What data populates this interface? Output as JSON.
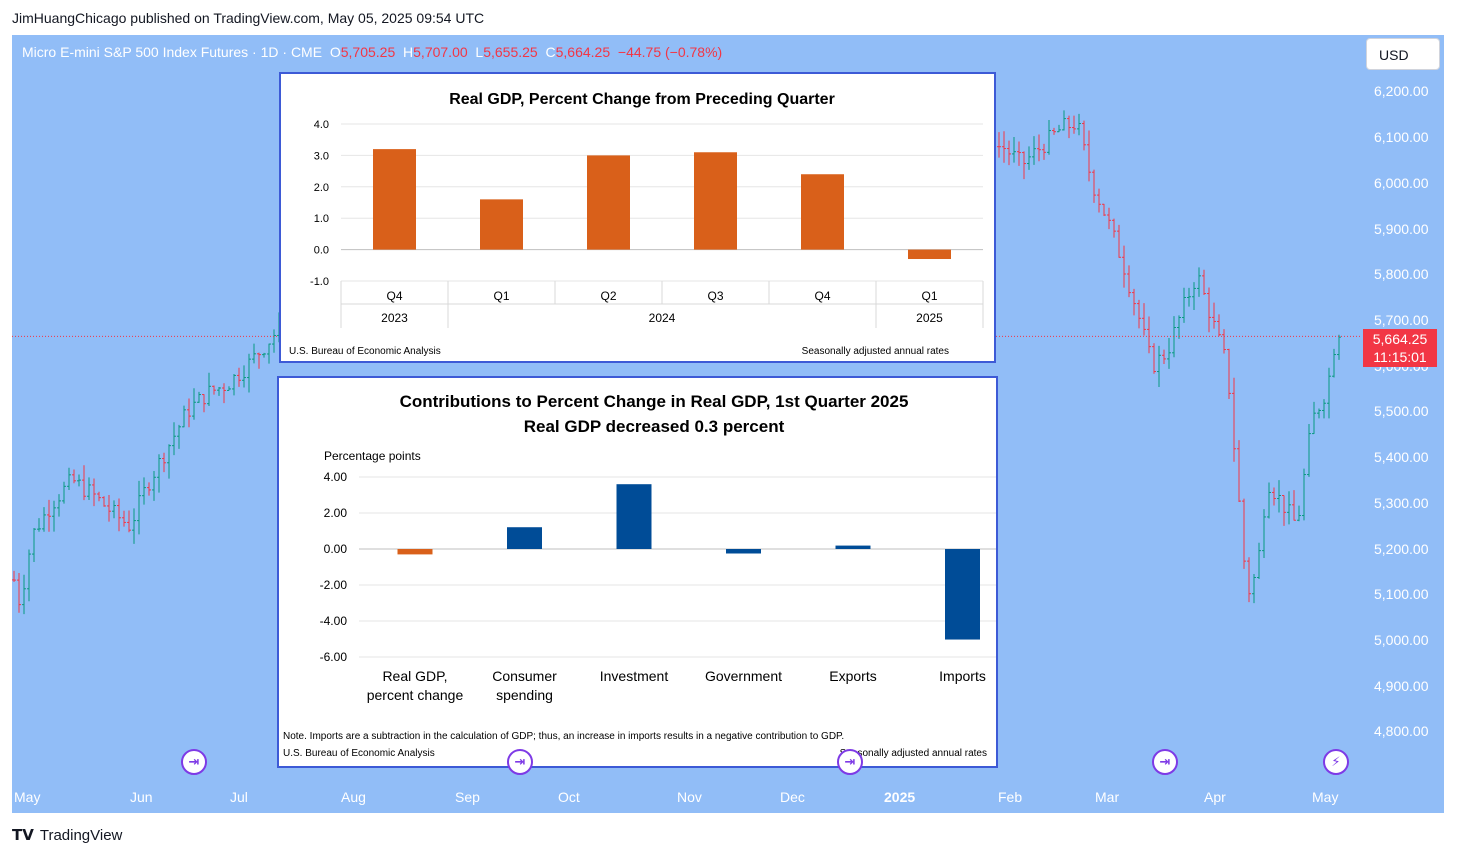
{
  "publisher_line": "JimHuangChicago published on TradingView.com, May 05, 2025 09:54 UTC",
  "symbol": {
    "name": "Micro E-mini S&P 500 Index Futures · 1D · CME",
    "o_label": "O",
    "o": "5,705.25",
    "h_label": "H",
    "h": "5,707.00",
    "l_label": "L",
    "l": "5,655.25",
    "c_label": "C",
    "c": "5,664.25",
    "change": "−44.75 (−0.78%)"
  },
  "currency_button": "USD",
  "price_axis": [
    "6,200.00",
    "6,100.00",
    "6,000.00",
    "5,900.00",
    "5,800.00",
    "5,700.00",
    "5,600.00",
    "5,500.00",
    "5,400.00",
    "5,300.00",
    "5,200.00",
    "5,100.00",
    "5,000.00",
    "4,900.00",
    "4,800.00"
  ],
  "last_price": "5,664.25",
  "countdown": "11:15:01",
  "time_axis": [
    "May",
    "Jun",
    "Jul",
    "Aug",
    "Sep",
    "Oct",
    "Nov",
    "Dec",
    "2025",
    "Feb",
    "Mar",
    "Apr",
    "May"
  ],
  "colors": {
    "chart_bg": "#91bdf7",
    "up": "#089981",
    "down": "#f23645",
    "bar_orange": "#d9601a",
    "bar_blue": "#004c97",
    "event": "#7e3ae6"
  },
  "icons": [
    "event-arrow-icon",
    "event-arrow-icon",
    "event-arrow-icon",
    "event-arrow-icon",
    "flash-icon"
  ],
  "footer_logo": "TradingView",
  "chart_data": [
    {
      "type": "bar",
      "title": "Real GDP, Percent Change from Preceding Quarter",
      "categories": [
        "Q4",
        "Q1",
        "Q2",
        "Q3",
        "Q4",
        "Q1"
      ],
      "category_groups": [
        {
          "label": "2023",
          "span": 1
        },
        {
          "label": "2024",
          "span": 4
        },
        {
          "label": "2025",
          "span": 1
        }
      ],
      "values": [
        3.2,
        1.6,
        3.0,
        3.1,
        2.4,
        -0.3
      ],
      "ylim": [
        -1.0,
        4.0
      ],
      "yticks": [
        "4.0",
        "3.0",
        "2.0",
        "1.0",
        "0.0",
        "-1.0"
      ],
      "grid": true,
      "source": "U.S. Bureau of Economic Analysis",
      "note_right": "Seasonally adjusted annual rates"
    },
    {
      "type": "bar",
      "title": "Contributions to Percent Change in Real GDP, 1st Quarter 2025",
      "subtitle": "Real GDP decreased 0.3 percent",
      "ylabel": "Percentage points",
      "categories": [
        "Real GDP,\npercent change",
        "Consumer\nspending",
        "Investment",
        "Government",
        "Exports",
        "Imports"
      ],
      "values": [
        -0.3,
        1.21,
        3.6,
        -0.25,
        0.19,
        -5.03
      ],
      "bar_colors": [
        "orange",
        "blue",
        "blue",
        "blue",
        "blue",
        "blue"
      ],
      "ylim": [
        -6.0,
        4.0
      ],
      "yticks": [
        "4.00",
        "2.00",
        "0.00",
        "-2.00",
        "-4.00",
        "-6.00"
      ],
      "grid": true,
      "note": "Note. Imports are a subtraction in the calculation of GDP; thus, an increase in imports results in a negative contribution to GDP.",
      "source": "U.S. Bureau of Economic Analysis",
      "note_right": "Seasonally adjusted annual rates"
    }
  ]
}
